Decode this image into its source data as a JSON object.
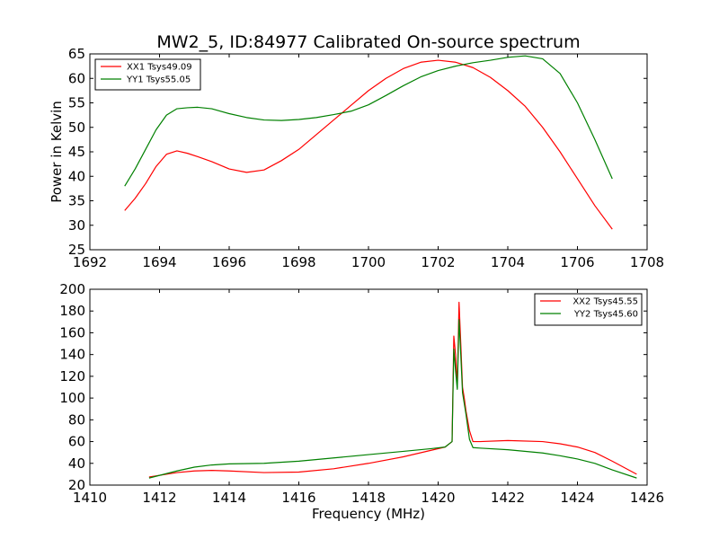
{
  "figure": {
    "title": "MW2_5, ID:84977 Calibrated On-source spectrum",
    "shared_ylabel": "Power in Kelvin",
    "shared_xlabel": "Frequency (MHz)"
  },
  "colors": {
    "red": "#ff0000",
    "green": "#008000"
  },
  "chart_data": [
    {
      "type": "line",
      "title": "MW2_5, ID:84977 Calibrated On-source spectrum",
      "xlabel": "",
      "ylabel": "Power in Kelvin",
      "xlim": [
        1692,
        1708
      ],
      "ylim": [
        25,
        65
      ],
      "xticks": [
        1692,
        1694,
        1696,
        1698,
        1700,
        1702,
        1704,
        1706,
        1708
      ],
      "yticks": [
        25,
        30,
        35,
        40,
        45,
        50,
        55,
        60,
        65
      ],
      "grid": false,
      "legend_position": "top-left",
      "series": [
        {
          "name": "XX1 Tsys49.09",
          "color": "#ff0000",
          "x": [
            1693.0,
            1693.3,
            1693.6,
            1693.9,
            1694.2,
            1694.5,
            1694.8,
            1695.1,
            1695.5,
            1696.0,
            1696.5,
            1697.0,
            1697.5,
            1698.0,
            1698.5,
            1699.0,
            1699.5,
            1700.0,
            1700.5,
            1701.0,
            1701.5,
            1702.0,
            1702.5,
            1703.0,
            1703.5,
            1704.0,
            1704.5,
            1705.0,
            1705.5,
            1706.0,
            1706.5,
            1707.0
          ],
          "y": [
            33.0,
            35.5,
            38.5,
            42.0,
            44.5,
            45.2,
            44.7,
            44.0,
            43.0,
            41.5,
            40.8,
            41.3,
            43.2,
            45.5,
            48.5,
            51.5,
            54.5,
            57.5,
            60.0,
            62.0,
            63.3,
            63.7,
            63.3,
            62.2,
            60.2,
            57.5,
            54.3,
            50.0,
            45.0,
            39.5,
            34.0,
            29.2
          ]
        },
        {
          "name": "YY1 Tsys55.05",
          "color": "#008000",
          "x": [
            1693.0,
            1693.3,
            1693.6,
            1693.9,
            1694.2,
            1694.5,
            1694.8,
            1695.1,
            1695.5,
            1696.0,
            1696.5,
            1697.0,
            1697.5,
            1698.0,
            1698.5,
            1699.0,
            1699.5,
            1700.0,
            1700.5,
            1701.0,
            1701.5,
            1702.0,
            1702.5,
            1703.0,
            1703.5,
            1704.0,
            1704.5,
            1705.0,
            1705.5,
            1706.0,
            1706.5,
            1707.0
          ],
          "y": [
            38.0,
            41.5,
            45.5,
            49.5,
            52.5,
            53.8,
            54.0,
            54.1,
            53.8,
            52.8,
            52.0,
            51.5,
            51.4,
            51.6,
            52.0,
            52.6,
            53.3,
            54.6,
            56.5,
            58.5,
            60.3,
            61.6,
            62.5,
            63.2,
            63.7,
            64.3,
            64.6,
            64.0,
            61.0,
            55.0,
            47.5,
            39.5
          ]
        }
      ]
    },
    {
      "type": "line",
      "title": "",
      "xlabel": "Frequency (MHz)",
      "ylabel": "",
      "xlim": [
        1410,
        1426
      ],
      "ylim": [
        20,
        200
      ],
      "xticks": [
        1410,
        1412,
        1414,
        1416,
        1418,
        1420,
        1422,
        1424,
        1426
      ],
      "yticks": [
        20,
        40,
        60,
        80,
        100,
        120,
        140,
        160,
        180,
        200
      ],
      "grid": false,
      "legend_position": "top-right",
      "series": [
        {
          "name": "XX2 Tsys45.55",
          "color": "#ff0000",
          "x": [
            1411.7,
            1412.5,
            1413.0,
            1413.5,
            1414.0,
            1415.0,
            1416.0,
            1417.0,
            1418.0,
            1419.0,
            1419.8,
            1420.2,
            1420.4,
            1420.45,
            1420.5,
            1420.55,
            1420.6,
            1420.65,
            1420.7,
            1420.75,
            1420.8,
            1420.9,
            1421.0,
            1421.2,
            1422.0,
            1423.0,
            1423.5,
            1424.0,
            1424.5,
            1425.0,
            1425.7
          ],
          "y": [
            27.5,
            31.5,
            33.0,
            33.5,
            33.0,
            31.5,
            32.0,
            35.0,
            40.0,
            46.0,
            52.0,
            55.0,
            60.0,
            157.0,
            140.0,
            110.0,
            188.0,
            150.0,
            110.0,
            100.0,
            88.0,
            70.0,
            60.0,
            60.0,
            61.0,
            60.0,
            58.0,
            55.0,
            50.0,
            42.0,
            30.0
          ]
        },
        {
          "name": "YY2 Tsys45.60",
          "color": "#008000",
          "x": [
            1411.7,
            1412.5,
            1413.0,
            1413.5,
            1414.0,
            1415.0,
            1416.0,
            1417.0,
            1418.0,
            1419.0,
            1419.8,
            1420.2,
            1420.4,
            1420.45,
            1420.5,
            1420.55,
            1420.6,
            1420.65,
            1420.7,
            1420.75,
            1420.8,
            1420.9,
            1421.0,
            1421.2,
            1422.0,
            1423.0,
            1423.5,
            1424.0,
            1424.5,
            1425.0,
            1425.7
          ],
          "y": [
            26.5,
            33.0,
            36.5,
            38.5,
            39.5,
            40.0,
            42.0,
            45.0,
            48.0,
            51.0,
            53.5,
            55.0,
            60.0,
            145.0,
            125.0,
            108.0,
            172.0,
            140.0,
            105.0,
            95.0,
            85.0,
            62.0,
            54.5,
            54.0,
            52.5,
            49.5,
            47.0,
            44.0,
            40.0,
            34.0,
            26.5
          ]
        }
      ]
    }
  ]
}
